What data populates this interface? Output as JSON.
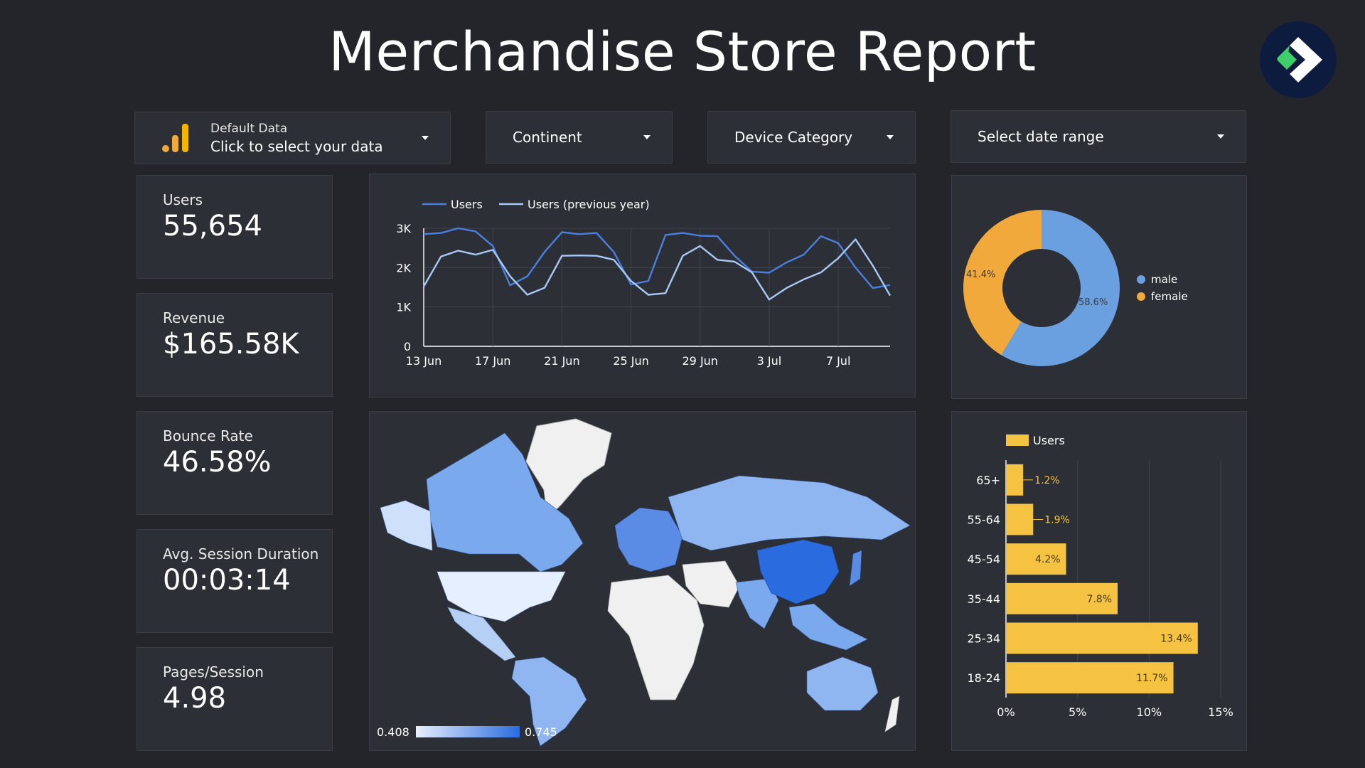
{
  "header": {
    "title": "Merchandise Store Report"
  },
  "controls": {
    "data_source": {
      "line1": "Default Data",
      "line2": "Click to select your data"
    },
    "continent": "Continent",
    "device_category": "Device Category",
    "date_range": "Select date range"
  },
  "kpis": [
    {
      "label": "Users",
      "value": "55,654"
    },
    {
      "label": "Revenue",
      "value": "$165.58K"
    },
    {
      "label": "Bounce Rate",
      "value": "46.58%"
    },
    {
      "label": "Avg. Session Duration",
      "value": "00:03:14"
    },
    {
      "label": "Pages/Session",
      "value": "4.98"
    }
  ],
  "colors": {
    "background": "#23252b",
    "card": "#2c2f36",
    "users_line": "#4a7fe0",
    "prev_line": "#a8c8f5",
    "male": "#6a9fe0",
    "female": "#f2a93b",
    "age_bar": "#f5c242",
    "logo_circle": "#0d1b3e",
    "logo_green": "#3ecf6a"
  },
  "chart_data": [
    {
      "type": "line",
      "x": [
        "13 Jun",
        "14 Jun",
        "15 Jun",
        "16 Jun",
        "17 Jun",
        "18 Jun",
        "19 Jun",
        "20 Jun",
        "21 Jun",
        "22 Jun",
        "23 Jun",
        "24 Jun",
        "25 Jun",
        "26 Jun",
        "27 Jun",
        "28 Jun",
        "29 Jun",
        "30 Jun",
        "1 Jul",
        "2 Jul",
        "3 Jul",
        "4 Jul",
        "5 Jul",
        "6 Jul",
        "7 Jul",
        "8 Jul",
        "9 Jul",
        "10 Jul"
      ],
      "x_ticks": [
        "13 Jun",
        "17 Jun",
        "21 Jun",
        "25 Jun",
        "29 Jun",
        "3 Jul",
        "7 Jul"
      ],
      "y_ticks": [
        "0",
        "1K",
        "2K",
        "3K"
      ],
      "ylim": [
        0,
        3000
      ],
      "series": [
        {
          "name": "Users",
          "values": [
            2850,
            2880,
            3000,
            2920,
            2550,
            1550,
            1780,
            2400,
            2900,
            2850,
            2880,
            2400,
            1570,
            1660,
            2830,
            2880,
            2810,
            2800,
            2300,
            1900,
            1870,
            2130,
            2330,
            2800,
            2620,
            2000,
            1480,
            1560
          ]
        },
        {
          "name": "Users (previous year)",
          "values": [
            1520,
            2280,
            2430,
            2330,
            2450,
            1780,
            1310,
            1490,
            2300,
            2310,
            2300,
            2200,
            1660,
            1310,
            1350,
            2300,
            2550,
            2200,
            2150,
            1880,
            1190,
            1480,
            1700,
            1880,
            2240,
            2720,
            2050,
            1290
          ]
        }
      ]
    },
    {
      "type": "pie",
      "donut": true,
      "labels": [
        "male",
        "female"
      ],
      "values": [
        58.6,
        41.4
      ],
      "value_labels": [
        "58.6%",
        "41.4%"
      ],
      "legend": "right"
    },
    {
      "type": "bar",
      "orientation": "horizontal",
      "series": [
        {
          "name": "Users",
          "values": [
            1.2,
            1.9,
            4.2,
            7.8,
            13.4,
            11.7
          ]
        }
      ],
      "categories": [
        "65+",
        "55-64",
        "45-54",
        "35-44",
        "25-34",
        "18-24"
      ],
      "value_labels": [
        "1.2%",
        "1.9%",
        "4.2%",
        "7.8%",
        "13.4%",
        "11.7%"
      ],
      "x_ticks": [
        "0%",
        "5%",
        "10%",
        "15%"
      ],
      "xlim": [
        0,
        15
      ],
      "legend": "top-left"
    },
    {
      "type": "map",
      "region": "world",
      "scale": {
        "min": "0.408",
        "max": "0.745",
        "min_color": "#e8f0fc",
        "max_color": "#2a6be0"
      }
    }
  ]
}
